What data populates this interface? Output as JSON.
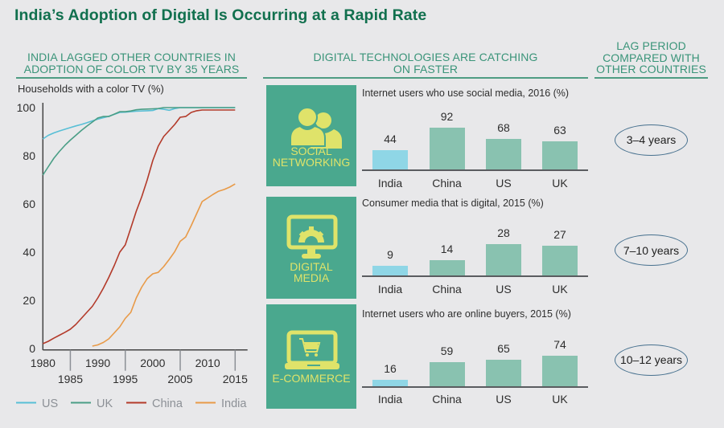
{
  "title": "India’s Adoption of Digital Is Occurring at a Rapid Rate",
  "headers": {
    "left": [
      "INDIA LAGGED OTHER COUNTRIES IN",
      "ADOPTION OF COLOR TV BY 35 YEARS"
    ],
    "middle": [
      "DIGITAL TECHNOLOGIES ARE CATCHING",
      "ON FASTER"
    ],
    "right": [
      "LAG PERIOD",
      "COMPARED WITH",
      "OTHER COUNTRIES"
    ]
  },
  "colors": {
    "US": "#58bfd6",
    "UK": "#4a9e86",
    "China": "#b33a2a",
    "India": "#e89a48",
    "bar_india": "#8fd6e6",
    "bar_other": "#89c2b0",
    "tile": "#4aa88e",
    "tile_icon": "#dfe36a",
    "title": "#11704e"
  },
  "chart_data": [
    {
      "type": "line",
      "title": "Households with a color TV (%)",
      "xlabel": "",
      "ylabel": "Households with a color TV (%)",
      "xlim": [
        1980,
        2015
      ],
      "ylim": [
        0,
        100
      ],
      "x_ticks_top": [
        "1980",
        "1990",
        "2000",
        "2010"
      ],
      "x_ticks_bottom": [
        "1985",
        "1995",
        "2005",
        "2015"
      ],
      "y_ticks": [
        "0",
        "20",
        "40",
        "60",
        "80",
        "100"
      ],
      "legend": [
        "US",
        "UK",
        "China",
        "India"
      ],
      "legend_position": "bottom",
      "grid": false,
      "series": [
        {
          "name": "US",
          "x": [
            1980,
            1981,
            1982,
            1983,
            1984,
            1985,
            1986,
            1987,
            1988,
            1989,
            1990,
            1991,
            1992,
            1993,
            1994,
            1995,
            1996,
            1997,
            1998,
            1999,
            2000,
            2001,
            2002,
            2003,
            2004,
            2005,
            2006,
            2007,
            2008,
            2009,
            2010,
            2011,
            2012,
            2013,
            2014,
            2015
          ],
          "values": [
            87,
            88.5,
            89.5,
            90.3,
            91,
            91.7,
            92.4,
            93,
            93.7,
            94.5,
            95.2,
            95.8,
            96.4,
            97.2,
            98,
            98.1,
            98.3,
            98.5,
            98.6,
            98.7,
            98.8,
            99.6,
            99.3,
            98.9,
            99.6,
            100,
            100,
            100,
            100,
            100,
            100,
            100,
            100,
            100,
            100,
            100
          ]
        },
        {
          "name": "UK",
          "x": [
            1980,
            1981,
            1982,
            1983,
            1984,
            1985,
            1986,
            1987,
            1988,
            1989,
            1990,
            1991,
            1992,
            1993,
            1994,
            1995,
            1996,
            1997,
            1998,
            1999,
            2000,
            2001,
            2002,
            2003,
            2004,
            2005,
            2006,
            2007,
            2008,
            2009,
            2010,
            2011,
            2012,
            2013,
            2014,
            2015
          ],
          "values": [
            72,
            75.5,
            79,
            81.8,
            84.3,
            86.5,
            88.5,
            90.5,
            92.3,
            94,
            95.7,
            96.3,
            96.3,
            97.3,
            98.3,
            98.3,
            98.6,
            99.1,
            99.3,
            99.4,
            99.5,
            99.6,
            100,
            100,
            100,
            100,
            100,
            100,
            100,
            100,
            100,
            100,
            100,
            100,
            100,
            100
          ]
        },
        {
          "name": "China",
          "x": [
            1980,
            1981,
            1982,
            1983,
            1984,
            1985,
            1986,
            1987,
            1988,
            1989,
            1990,
            1991,
            1992,
            1993,
            1994,
            1995,
            1996,
            1997,
            1998,
            1999,
            2000,
            2001,
            2002,
            2003,
            2004,
            2005,
            2006,
            2007,
            2008,
            2009,
            2010,
            2011,
            2012,
            2013,
            2014,
            2015
          ],
          "values": [
            2,
            3,
            4.3,
            5.5,
            6.7,
            8,
            10,
            12.5,
            15,
            17.5,
            21,
            25,
            29.5,
            34.5,
            40,
            43,
            50,
            57,
            63,
            70,
            78,
            84,
            88,
            90.5,
            93,
            96,
            96.3,
            98,
            98.7,
            99,
            99,
            99,
            99,
            99,
            99,
            99
          ]
        },
        {
          "name": "India",
          "x": [
            1989,
            1990,
            1991,
            1992,
            1993,
            1994,
            1995,
            1996,
            1997,
            1998,
            1999,
            2000,
            2001,
            2002,
            2003,
            2004,
            2005,
            2006,
            2007,
            2008,
            2009,
            2010,
            2011,
            2012,
            2013,
            2014,
            2015
          ],
          "values": [
            1,
            1.5,
            2.5,
            4,
            6.5,
            9,
            12.5,
            15,
            21,
            25.5,
            29,
            31,
            31.6,
            34,
            37,
            40.2,
            44.5,
            46.3,
            51,
            56,
            61,
            62.5,
            64,
            65.3,
            66,
            67,
            68.3
          ]
        }
      ]
    },
    {
      "type": "bar",
      "title": "Internet users who use social media, 2016 (%)",
      "categories": [
        "India",
        "China",
        "US",
        "UK"
      ],
      "values": [
        44,
        92,
        68,
        63
      ],
      "value_labels": [
        "44",
        "92",
        "68",
        "63"
      ],
      "panel_label": [
        "SOCIAL",
        "NETWORKING"
      ],
      "icon": "people-icon",
      "lag": "3–4 years"
    },
    {
      "type": "bar",
      "title": "Consumer media that is digital, 2015 (%)",
      "categories": [
        "India",
        "China",
        "US",
        "UK"
      ],
      "values": [
        9,
        14,
        28,
        27
      ],
      "value_labels": [
        "9",
        "14",
        "28",
        "27"
      ],
      "panel_label": [
        "DIGITAL",
        "MEDIA"
      ],
      "icon": "monitor-gear-icon",
      "lag": "7–10 years"
    },
    {
      "type": "bar",
      "title": "Internet users who are online buyers, 2015 (%)",
      "categories": [
        "India",
        "China",
        "US",
        "UK"
      ],
      "values": [
        16,
        59,
        65,
        74
      ],
      "value_labels": [
        "16",
        "59",
        "65",
        "74"
      ],
      "panel_label": [
        "E-COMMERCE"
      ],
      "icon": "laptop-cart-icon",
      "lag": "10–12 years"
    }
  ]
}
